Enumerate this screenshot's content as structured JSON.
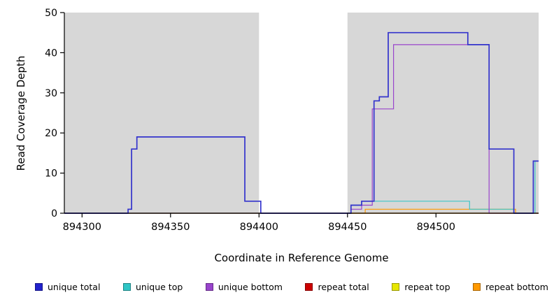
{
  "chart_data": {
    "type": "line",
    "subtype": "step-coverage-plot",
    "title": "",
    "xlabel": "Coordinate in Reference Genome",
    "ylabel": "Read Coverage Depth",
    "xlim": [
      894290,
      894558
    ],
    "ylim": [
      0,
      50
    ],
    "x_ticks": [
      "894300",
      "894350",
      "894400",
      "894450",
      "894500"
    ],
    "x_tick_values": [
      894300,
      894350,
      894400,
      894450,
      894500
    ],
    "y_ticks": [
      "0",
      "10",
      "20",
      "30",
      "40",
      "50"
    ],
    "y_tick_values": [
      0,
      10,
      20,
      30,
      40,
      50
    ],
    "grid": false,
    "background_color": "#ffffff",
    "shaded_regions": [
      {
        "x0": 894290,
        "x1": 894400,
        "color": "#d7d7d7"
      },
      {
        "x0": 894450,
        "x1": 894558,
        "color": "#d7d7d7"
      }
    ],
    "series": [
      {
        "name": "repeat total",
        "color": "#cc0000",
        "width": 1.2,
        "steps": [
          [
            894290,
            0
          ]
        ]
      },
      {
        "name": "repeat top",
        "color": "#e6e600",
        "width": 1.2,
        "steps": [
          [
            894290,
            0
          ]
        ]
      },
      {
        "name": "repeat bottom",
        "color": "#ff9900",
        "width": 1.2,
        "steps": [
          [
            894290,
            0
          ],
          [
            894460,
            1
          ],
          [
            894545,
            0
          ]
        ]
      },
      {
        "name": "unique top",
        "color": "#3ec6c6",
        "width": 1.2,
        "steps": [
          [
            894290,
            0
          ],
          [
            894452,
            2
          ],
          [
            894458,
            3
          ],
          [
            894519,
            1
          ],
          [
            894544,
            0
          ],
          [
            894556,
            13
          ]
        ]
      },
      {
        "name": "unique bottom",
        "color": "#9944cc",
        "width": 1.2,
        "steps": [
          [
            894290,
            0
          ],
          [
            894452,
            1
          ],
          [
            894458,
            2
          ],
          [
            894464,
            26
          ],
          [
            894476,
            42
          ],
          [
            894530,
            0
          ]
        ]
      },
      {
        "name": "unique total",
        "color": "#3333cc",
        "width": 1.7,
        "steps": [
          [
            894290,
            0
          ],
          [
            894326,
            1
          ],
          [
            894328,
            16
          ],
          [
            894331,
            19
          ],
          [
            894392,
            3
          ],
          [
            894401,
            0
          ],
          [
            894452,
            2
          ],
          [
            894458,
            3
          ],
          [
            894465,
            28
          ],
          [
            894468,
            29
          ],
          [
            894473,
            45
          ],
          [
            894518,
            42
          ],
          [
            894530,
            16
          ],
          [
            894544,
            0
          ],
          [
            894555,
            13
          ]
        ]
      }
    ],
    "legend": {
      "position": "bottom",
      "items": [
        {
          "label": "unique total",
          "color": "#2222cc"
        },
        {
          "label": "unique top",
          "color": "#2fc5c5"
        },
        {
          "label": "unique bottom",
          "color": "#9944cc"
        },
        {
          "label": "repeat total",
          "color": "#cc0000"
        },
        {
          "label": "repeat top",
          "color": "#e6e600"
        },
        {
          "label": "repeat bottom",
          "color": "#ff9900"
        }
      ]
    }
  }
}
